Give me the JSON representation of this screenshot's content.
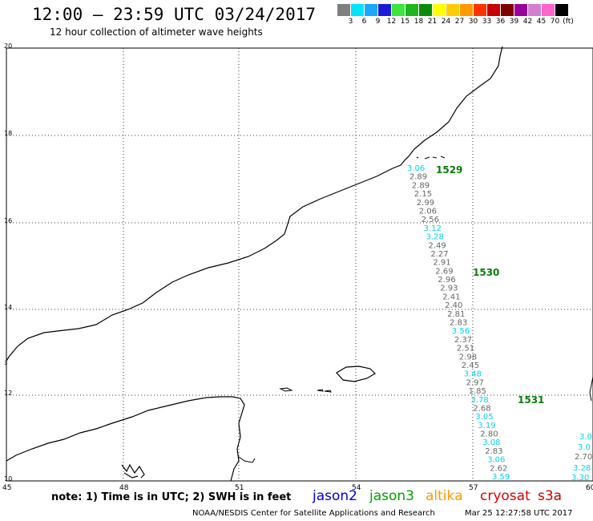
{
  "header": {
    "title": "12:00 – 23:59 UTC 03/24/2017",
    "subtitle": "12 hour collection of altimeter wave heights"
  },
  "legend": {
    "unit": "(ft)",
    "colors": [
      "#7f7f7f",
      "#00e5ff",
      "#1aa8ff",
      "#1b1bd6",
      "#3ce63c",
      "#1fb51f",
      "#0a8c0a",
      "#ffff00",
      "#ffcc00",
      "#ff9900",
      "#ff3300",
      "#cc0000",
      "#800000",
      "#990099",
      "#d27fd2",
      "#ff66cc",
      "#000000"
    ],
    "labels": [
      "3",
      "6",
      "9",
      "12",
      "15",
      "18",
      "21",
      "24",
      "27",
      "30",
      "33",
      "36",
      "39",
      "42",
      "45",
      "70"
    ]
  },
  "map": {
    "lat_labels": [
      "20",
      "18",
      "16",
      "14",
      "12",
      "10"
    ],
    "lon_labels": [
      "45",
      "48",
      "51",
      "54",
      "57",
      "60"
    ],
    "coast_label": "3"
  },
  "tracks": [
    {
      "id": "1529",
      "label": "1529",
      "color": "#0a7a0a"
    },
    {
      "id": "1530",
      "label": "1530",
      "color": "#0a7a0a"
    },
    {
      "id": "1531",
      "label": "1531",
      "color": "#0a7a0a"
    }
  ],
  "swh": {
    "main_track": [
      {
        "v": "3.06",
        "c": "cyan"
      },
      {
        "v": "2.89",
        "c": "gray"
      },
      {
        "v": "2.89",
        "c": "gray"
      },
      {
        "v": "2.15",
        "c": "gray"
      },
      {
        "v": "2.99",
        "c": "gray"
      },
      {
        "v": "2.06",
        "c": "gray"
      },
      {
        "v": "2.56",
        "c": "gray"
      },
      {
        "v": "3.12",
        "c": "cyan"
      },
      {
        "v": "3.28",
        "c": "cyan"
      },
      {
        "v": "2.49",
        "c": "gray"
      },
      {
        "v": "2.27",
        "c": "gray"
      },
      {
        "v": "2.91",
        "c": "gray"
      },
      {
        "v": "2.69",
        "c": "gray"
      },
      {
        "v": "2.96",
        "c": "gray"
      },
      {
        "v": "2.93",
        "c": "gray"
      },
      {
        "v": "2.41",
        "c": "gray"
      },
      {
        "v": "2.40",
        "c": "gray"
      },
      {
        "v": "2.81",
        "c": "gray"
      },
      {
        "v": "2.83",
        "c": "gray"
      },
      {
        "v": "3.56",
        "c": "cyan"
      },
      {
        "v": "2.37",
        "c": "gray"
      },
      {
        "v": "2.51",
        "c": "gray"
      },
      {
        "v": "2.98",
        "c": "gray"
      },
      {
        "v": "2.45",
        "c": "gray"
      },
      {
        "v": "3.48",
        "c": "cyan"
      },
      {
        "v": "2.97",
        "c": "gray"
      },
      {
        "v": "1.85",
        "c": "gray"
      },
      {
        "v": "3.78",
        "c": "cyan"
      },
      {
        "v": "2.68",
        "c": "gray"
      },
      {
        "v": "3.05",
        "c": "cyan"
      },
      {
        "v": "3.19",
        "c": "cyan"
      },
      {
        "v": "2.80",
        "c": "gray"
      },
      {
        "v": "3.08",
        "c": "cyan"
      },
      {
        "v": "2.83",
        "c": "gray"
      },
      {
        "v": "3.06",
        "c": "cyan"
      },
      {
        "v": "2.62",
        "c": "gray"
      },
      {
        "v": "3.59",
        "c": "cyan"
      }
    ],
    "right_track": [
      {
        "v": "3.0",
        "c": "cyan"
      },
      {
        "v": "3.0",
        "c": "cyan"
      },
      {
        "v": "2.70",
        "c": "gray"
      },
      {
        "v": "3.28",
        "c": "cyan"
      },
      {
        "v": "3.30",
        "c": "cyan"
      }
    ]
  },
  "footer": {
    "note": "note: 1) Time is in UTC; 2) SWH is in feet",
    "satellites": [
      {
        "name": "jason2",
        "color": "#0000dd"
      },
      {
        "name": "jason3",
        "color": "#00a000"
      },
      {
        "name": "altika",
        "color": "#ff9900"
      },
      {
        "name": "cryosat",
        "color": "#dd0000"
      },
      {
        "name": "s3a",
        "color": "#cc0000"
      }
    ],
    "credit": "NOAA/NESDIS Center for Satellite Applications and Research",
    "timestamp": "Mar 25 12:27:58 UTC 2017"
  }
}
